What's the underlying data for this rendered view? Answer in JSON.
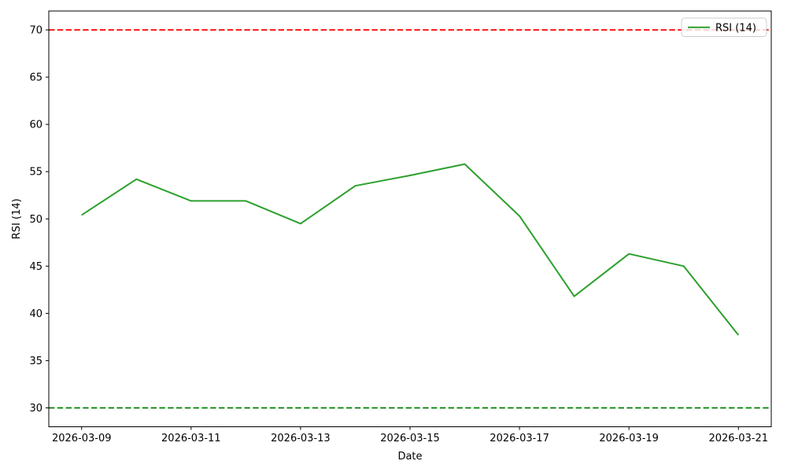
{
  "chart_data": {
    "type": "line",
    "title": "",
    "xlabel": "Date",
    "ylabel": "RSI (14)",
    "x": [
      "2026-03-09",
      "2026-03-10",
      "2026-03-11",
      "2026-03-12",
      "2026-03-13",
      "2026-03-14",
      "2026-03-15",
      "2026-03-16",
      "2026-03-17",
      "2026-03-18",
      "2026-03-19",
      "2026-03-20",
      "2026-03-21"
    ],
    "series": [
      {
        "name": "RSI (14)",
        "color": "#2ca02c",
        "line_style": "solid",
        "values": [
          50.4,
          54.2,
          51.9,
          51.9,
          49.5,
          53.5,
          54.6,
          55.8,
          50.3,
          41.8,
          46.3,
          45.0,
          37.7
        ]
      }
    ],
    "reference_lines": [
      {
        "name": "overbought-threshold",
        "value": 70,
        "color": "#ff0000",
        "style": "dashed"
      },
      {
        "name": "oversold-threshold",
        "value": 30,
        "color": "#008000",
        "style": "dashed"
      }
    ],
    "ylim": [
      28,
      72
    ],
    "yticks": [
      30,
      35,
      40,
      45,
      50,
      55,
      60,
      65,
      70
    ],
    "xtick_indices": [
      0,
      2,
      4,
      6,
      8,
      10,
      12
    ],
    "xtick_labels": [
      "2026-03-09",
      "2026-03-11",
      "2026-03-13",
      "2026-03-15",
      "2026-03-17",
      "2026-03-19",
      "2026-03-21"
    ],
    "legend": {
      "position": "upper-right",
      "entries": [
        {
          "label": "RSI (14)",
          "color": "#2ca02c"
        }
      ]
    },
    "grid": false,
    "axis_color": "#000000",
    "background_color": "#ffffff"
  }
}
